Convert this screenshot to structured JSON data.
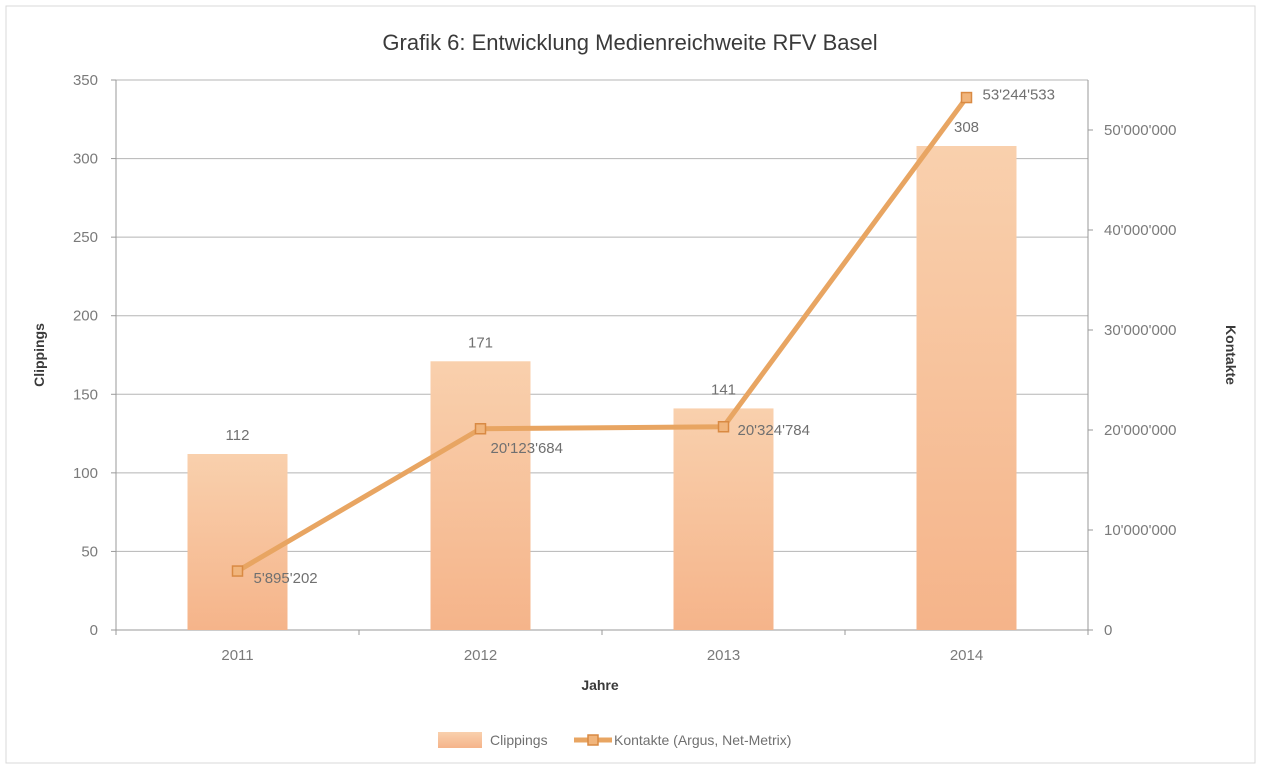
{
  "chart_data": {
    "type": "bar",
    "title": "Grafik 6: Entwicklung Medienreichweite RFV Basel",
    "xlabel": "Jahre",
    "ylabel": "Clippings",
    "y2label": "Kontakte",
    "categories": [
      "2011",
      "2012",
      "2013",
      "2014"
    ],
    "ylim": [
      0,
      350
    ],
    "yticks": [
      0,
      50,
      100,
      150,
      200,
      250,
      300,
      350
    ],
    "ytick_labels": [
      "0",
      "50",
      "100",
      "150",
      "200",
      "250",
      "300",
      "350"
    ],
    "y2lim": [
      0,
      55000000
    ],
    "y2ticks": [
      0,
      10000000,
      20000000,
      30000000,
      40000000,
      50000000
    ],
    "y2tick_labels": [
      "0",
      "10'000'000",
      "20'000'000",
      "30'000'000",
      "40'000'000",
      "50'000'000"
    ],
    "grid": true,
    "legend_position": "bottom",
    "series": [
      {
        "name": "Clippings",
        "type": "bar",
        "axis": "left",
        "values": [
          112,
          171,
          141,
          308
        ],
        "labels": [
          "112",
          "171",
          "141",
          "308"
        ],
        "color": "#f7c39c"
      },
      {
        "name": "Kontakte (Argus, Net-Metrix)",
        "type": "line",
        "axis": "right",
        "values": [
          5895202,
          20123684,
          20324784,
          53244533
        ],
        "labels": [
          "5'895'202",
          "20'123'684",
          "20'324'784",
          "53'244'533"
        ],
        "color": "#e8a562"
      }
    ]
  }
}
